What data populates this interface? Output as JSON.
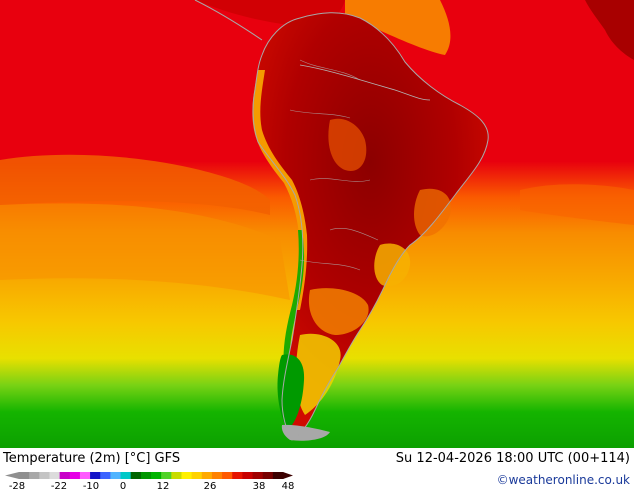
{
  "title": "Temperature (2m) [°C] GFS",
  "timestamp": "Su 12-04-2026 18:00 UTC (00+114)",
  "credit": "©weatheronline.co.uk",
  "legend": {
    "ticks": [
      "-28",
      "-22",
      "-10",
      "0",
      "12",
      "26",
      "38",
      "48"
    ],
    "colors": [
      "#8f8f8f",
      "#a8a8a8",
      "#c4c4c4",
      "#dcdcdc",
      "#c800c8",
      "#e600e6",
      "#ff5aff",
      "#1414c8",
      "#3c64ff",
      "#50b4ff",
      "#00c8c8",
      "#006400",
      "#009600",
      "#00b400",
      "#50d228",
      "#c8dc00",
      "#fff000",
      "#ffd200",
      "#ffaa00",
      "#ff8200",
      "#ff5a00",
      "#e61400",
      "#c80000",
      "#a00000",
      "#780000",
      "#3c0000"
    ]
  },
  "colors": {
    "ocean_warm": "#e8000e",
    "ocean_orange": "#f87a00",
    "ocean_yellow": "#f6d800",
    "ocean_green": "#14b400",
    "land_hot": "#9a0000",
    "land_mid": "#c80a00",
    "andes_cool": "#f5a000",
    "patagonia_green": "#009a00",
    "coast_line": "#a8a8a8"
  }
}
